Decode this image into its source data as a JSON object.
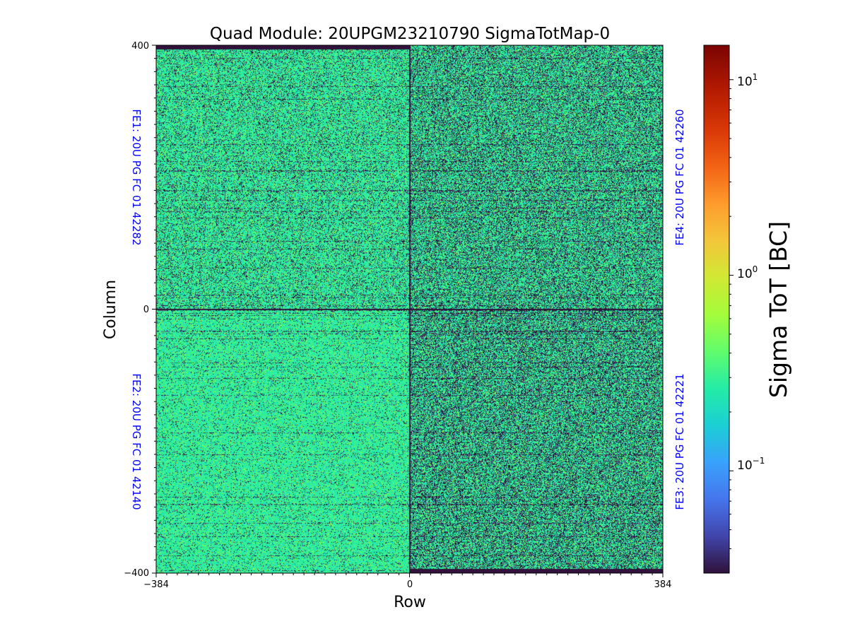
{
  "chart_data": {
    "type": "heatmap",
    "title": "Quad Module: 20UPGM23210790 SigmaTotMap-0",
    "xlabel": "Row",
    "ylabel": "Column",
    "xlim": [
      -384,
      384
    ],
    "ylim": [
      -400,
      400
    ],
    "x_ticks": [
      "−384",
      "0",
      "384"
    ],
    "y_ticks": [
      "400",
      "0",
      "−400"
    ],
    "x_tick_values": [
      -384,
      0,
      384
    ],
    "y_tick_values": [
      400,
      0,
      -400
    ],
    "colorbar": {
      "label": "Sigma ToT [BC]",
      "scale": "log",
      "range": [
        0.03,
        15
      ],
      "colormap": "turbo",
      "ticks": [
        {
          "base": "10",
          "exp": "1",
          "value": 10
        },
        {
          "base": "10",
          "exp": "0",
          "value": 1
        },
        {
          "base": "10",
          "exp": "−1",
          "value": 0.1
        }
      ]
    },
    "quadrants": [
      {
        "label": "FE1: 20U PG FC 01 42282",
        "position": "top-left",
        "typical_value": 0.35,
        "label_color": "#0000ff"
      },
      {
        "label": "FE4: 20U PG FC 01 42260",
        "position": "top-right",
        "typical_value": 0.3,
        "label_color": "#0000ff"
      },
      {
        "label": "FE2: 20U PG FC 01 42140",
        "position": "bottom-left",
        "typical_value": 0.4,
        "label_color": "#0000ff"
      },
      {
        "label": "FE3: 20U PG FC 01 42221",
        "position": "bottom-right",
        "typical_value": 0.22,
        "label_color": "#0000ff"
      }
    ]
  }
}
